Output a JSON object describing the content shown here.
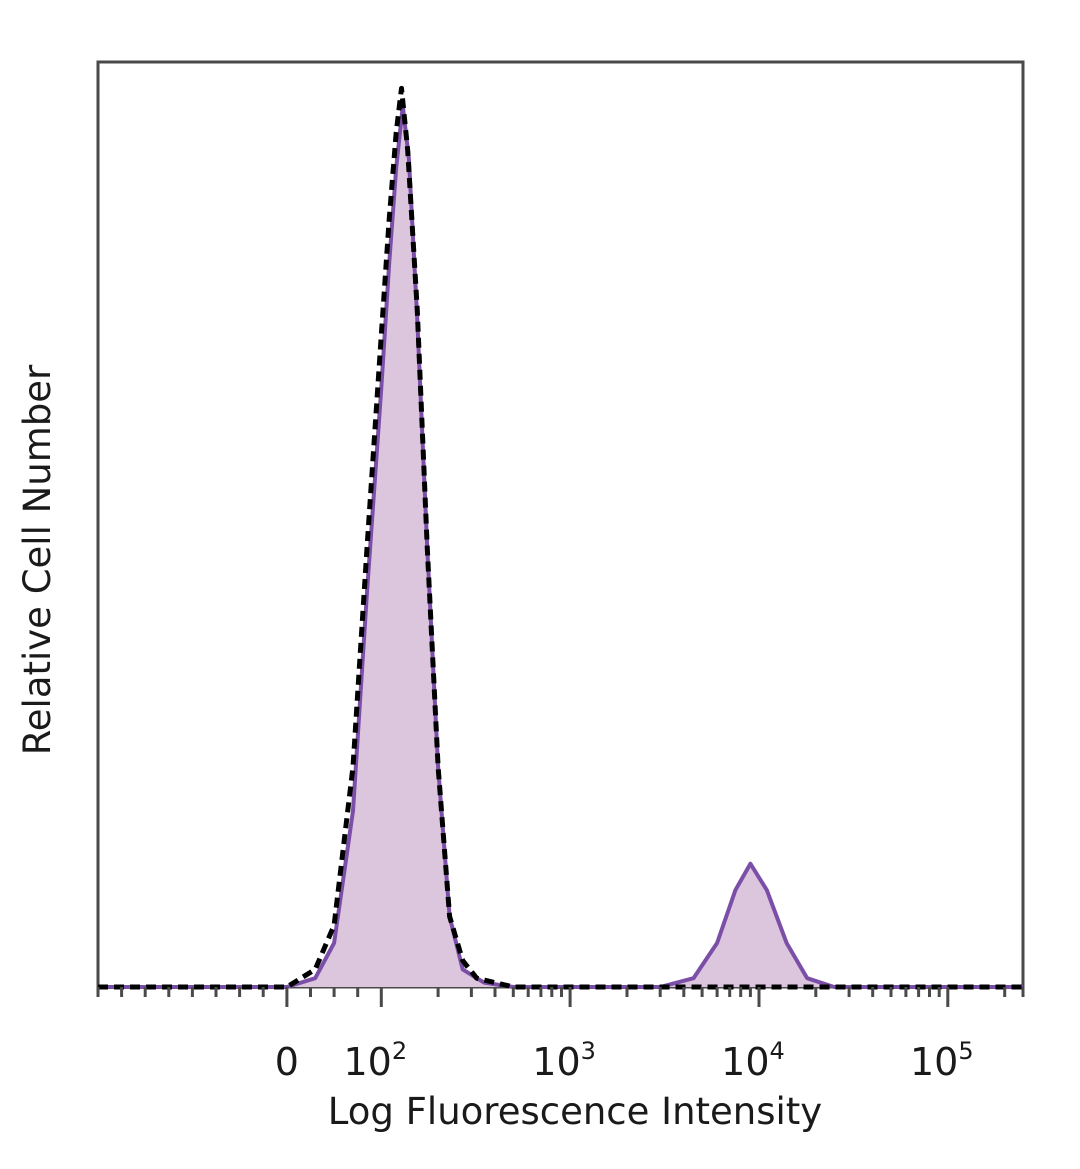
{
  "chart_data": {
    "type": "area",
    "title": "",
    "xlabel": "Log Fluorescence Intensity",
    "ylabel": "Relative Cell Number",
    "x_scale": "biexponential",
    "xlim": [
      -200,
      250000
    ],
    "ylim": [
      0,
      1.05
    ],
    "x_ticks": [
      {
        "value": 0,
        "base": "0",
        "exp": ""
      },
      {
        "value": 100,
        "base": "10",
        "exp": "2"
      },
      {
        "value": 1000,
        "base": "10",
        "exp": "3"
      },
      {
        "value": 10000,
        "base": "10",
        "exp": "4"
      },
      {
        "value": 100000,
        "base": "10",
        "exp": "5"
      }
    ],
    "grid": false,
    "legend": "none",
    "series": [
      {
        "style": "filled-solid",
        "color": "#7b4fa8",
        "fill": "#dcc6de",
        "points": [
          [
            -200,
            0
          ],
          [
            0,
            0
          ],
          [
            30,
            0.01
          ],
          [
            50,
            0.05
          ],
          [
            70,
            0.2
          ],
          [
            85,
            0.45
          ],
          [
            100,
            0.68
          ],
          [
            110,
            0.82
          ],
          [
            120,
            0.93
          ],
          [
            130,
            1.0
          ],
          [
            140,
            0.94
          ],
          [
            155,
            0.76
          ],
          [
            175,
            0.5
          ],
          [
            200,
            0.25
          ],
          [
            230,
            0.08
          ],
          [
            270,
            0.02
          ],
          [
            350,
            0.005
          ],
          [
            500,
            0
          ],
          [
            1000,
            0
          ],
          [
            3000,
            0
          ],
          [
            4500,
            0.01
          ],
          [
            6000,
            0.05
          ],
          [
            7500,
            0.11
          ],
          [
            9000,
            0.14
          ],
          [
            11000,
            0.11
          ],
          [
            14000,
            0.05
          ],
          [
            18000,
            0.01
          ],
          [
            25000,
            0
          ],
          [
            100000,
            0
          ],
          [
            250000,
            0
          ]
        ]
      },
      {
        "style": "dashed",
        "color": "#000000",
        "points": [
          [
            -200,
            0
          ],
          [
            0,
            0
          ],
          [
            30,
            0.02
          ],
          [
            50,
            0.07
          ],
          [
            70,
            0.25
          ],
          [
            85,
            0.5
          ],
          [
            100,
            0.74
          ],
          [
            110,
            0.87
          ],
          [
            120,
            0.97
          ],
          [
            128,
            1.02
          ],
          [
            138,
            0.95
          ],
          [
            155,
            0.77
          ],
          [
            175,
            0.5
          ],
          [
            200,
            0.25
          ],
          [
            230,
            0.08
          ],
          [
            270,
            0.03
          ],
          [
            320,
            0.01
          ],
          [
            500,
            0
          ],
          [
            1000,
            0
          ],
          [
            10000,
            0
          ],
          [
            100000,
            0
          ],
          [
            250000,
            0
          ]
        ]
      }
    ]
  }
}
